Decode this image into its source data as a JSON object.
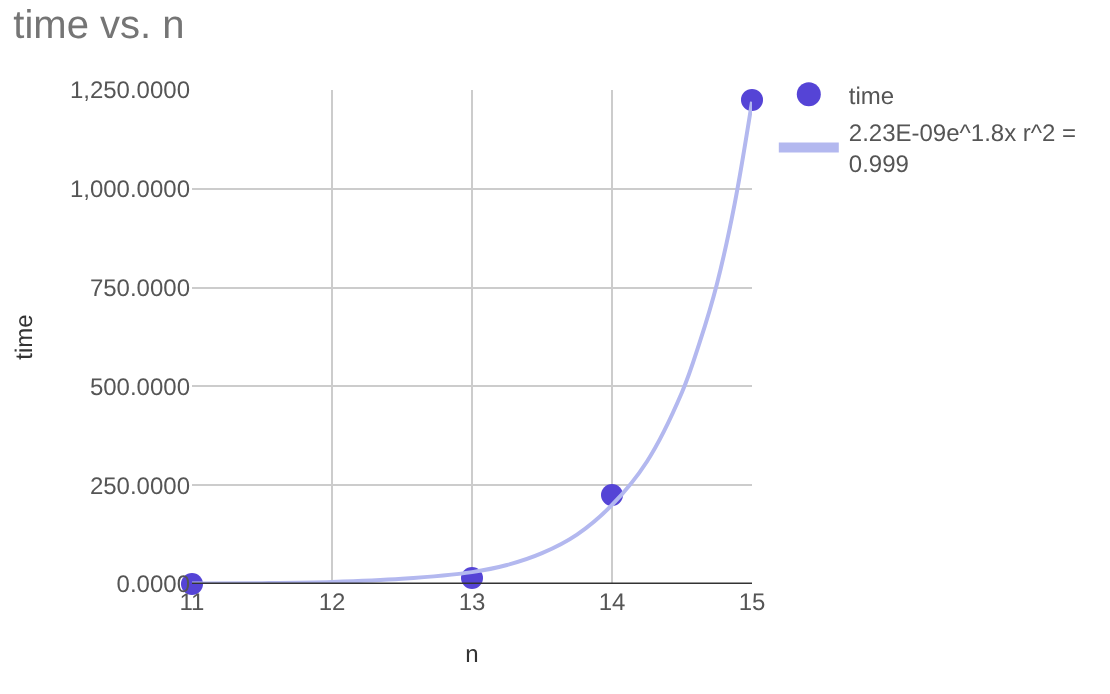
{
  "chart_data": {
    "type": "scatter",
    "title": "time vs. n",
    "xlabel": "n",
    "ylabel": "time",
    "xlim": [
      11,
      15
    ],
    "xticks": [
      11,
      12,
      13,
      14,
      15
    ],
    "ylim": [
      0,
      1250
    ],
    "yticks": [
      {
        "value": 0,
        "label": "0.0000"
      },
      {
        "value": 250,
        "label": "250.0000"
      },
      {
        "value": 500,
        "label": "500.0000"
      },
      {
        "value": 750,
        "label": "750.0000"
      },
      {
        "value": 1000,
        "label": "1,000.0000"
      },
      {
        "value": 1250,
        "label": "1,250.0000"
      }
    ],
    "grid": true,
    "legend": "top right",
    "series": [
      {
        "name": "time",
        "marker": "circle",
        "color": "#5544d6",
        "x": [
          11,
          13,
          14,
          15
        ],
        "values": [
          0,
          15,
          225,
          1225
        ]
      },
      {
        "name": "2.23E-09e^1.8x r^2 = 0.999",
        "type": "line",
        "marker": "none",
        "line_style": "solid",
        "color": "#b3b8ef",
        "x": [
          11,
          11.5,
          12,
          12.5,
          13,
          13.25,
          13.5,
          13.75,
          14,
          14.25,
          14.5,
          14.625,
          14.75,
          14.875,
          15
        ],
        "values": [
          1,
          2,
          5,
          13,
          30,
          48,
          78,
          125,
          200,
          310,
          485,
          610,
          760,
          960,
          1220
        ]
      }
    ]
  }
}
